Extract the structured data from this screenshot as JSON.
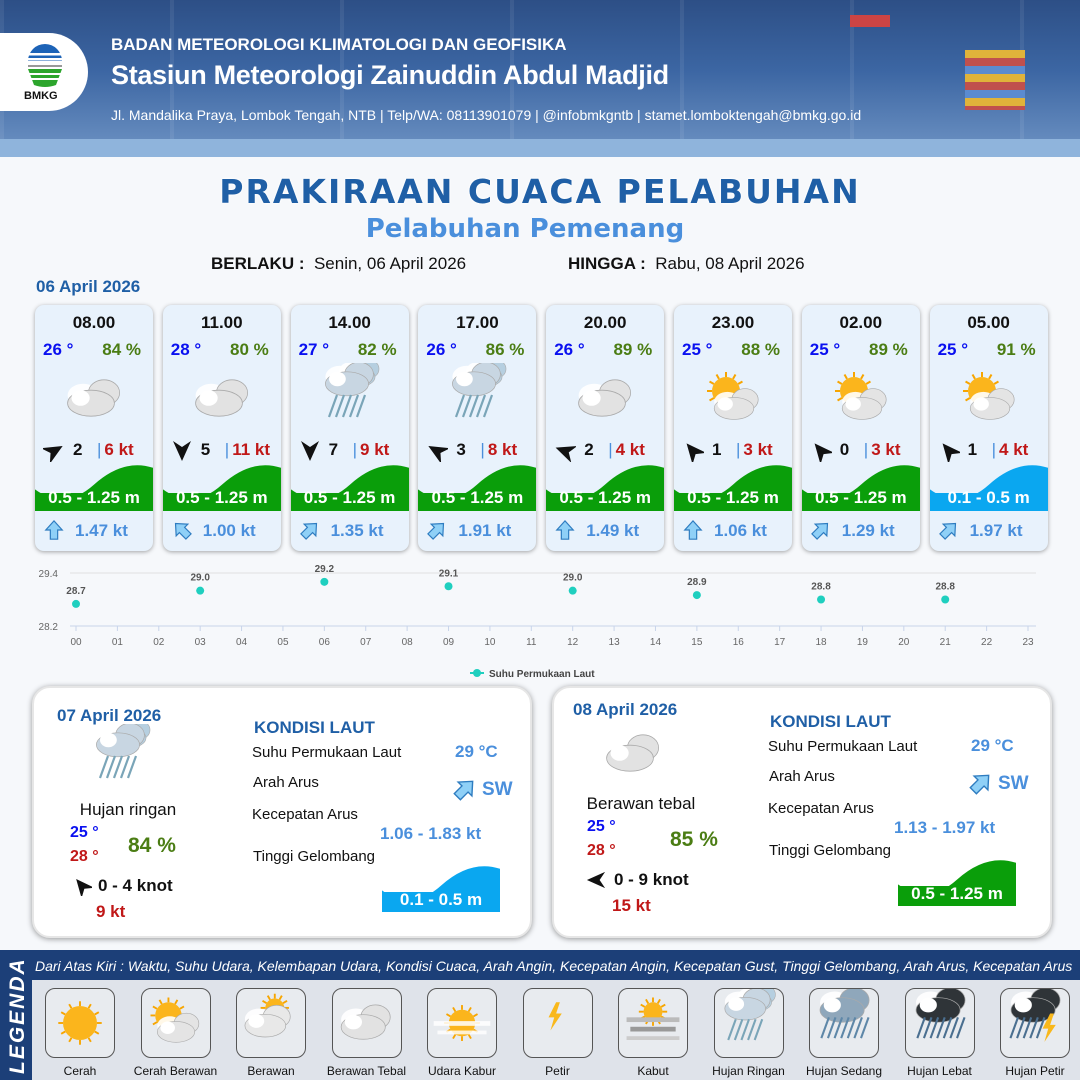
{
  "header": {
    "logo_text": "BMKG",
    "agency": "BADAN METEOROLOGI KLIMATOLOGI DAN GEOFISIKA",
    "station": "Stasiun Meteorologi Zainuddin Abdul Madjid",
    "contact": "Jl. Mandalika Praya, Lombok Tengah, NTB | Telp/WA: 08113901079 | @infobmkgntb | stamet.lomboktengah@bmkg.go.id"
  },
  "title": "PRAKIRAAN CUACA PELABUHAN",
  "port": "Pelabuhan Pemenang",
  "validity": {
    "from_label": "BERLAKU :",
    "from": "Senin, 06 April 2026",
    "to_label": "HINGGA :",
    "to": "Rabu, 08 April 2026"
  },
  "day1": {
    "date": "06 April 2026",
    "cards": [
      {
        "time": "08.00",
        "temp": "26 °",
        "rh": "84 %",
        "icon": "berawan-tebal",
        "wind_dir_deg": 60,
        "wind": "2",
        "gust": "6 kt",
        "wave": "0.5 - 1.25 m",
        "wave_color": "#0a9e0a",
        "cur_dir_deg": 180,
        "current": "1.47 kt"
      },
      {
        "time": "11.00",
        "temp": "28 °",
        "rh": "80 %",
        "icon": "berawan-tebal",
        "wind_dir_deg": 180,
        "wind": "5",
        "gust": "11 kt",
        "wave": "0.5 - 1.25 m",
        "wave_color": "#0a9e0a",
        "cur_dir_deg": 135,
        "current": "1.00 kt"
      },
      {
        "time": "14.00",
        "temp": "27 °",
        "rh": "82 %",
        "icon": "hujan-ringan",
        "wind_dir_deg": 180,
        "wind": "7",
        "gust": "9 kt",
        "wave": "0.5 - 1.25 m",
        "wave_color": "#0a9e0a",
        "cur_dir_deg": 225,
        "current": "1.35 kt"
      },
      {
        "time": "17.00",
        "temp": "26 °",
        "rh": "86 %",
        "icon": "hujan-ringan",
        "wind_dir_deg": 300,
        "wind": "3",
        "gust": "8 kt",
        "wave": "0.5 - 1.25 m",
        "wave_color": "#0a9e0a",
        "cur_dir_deg": 225,
        "current": "1.91 kt"
      },
      {
        "time": "20.00",
        "temp": "26 °",
        "rh": "89 %",
        "icon": "berawan-tebal",
        "wind_dir_deg": 290,
        "wind": "2",
        "gust": "4 kt",
        "wave": "0.5 - 1.25 m",
        "wave_color": "#0a9e0a",
        "cur_dir_deg": 180,
        "current": "1.49 kt"
      },
      {
        "time": "23.00",
        "temp": "25 °",
        "rh": "88 %",
        "icon": "cerah-berawan",
        "wind_dir_deg": 320,
        "wind": "1",
        "gust": "3 kt",
        "wave": "0.5 - 1.25 m",
        "wave_color": "#0a9e0a",
        "cur_dir_deg": 180,
        "current": "1.06 kt"
      },
      {
        "time": "02.00",
        "temp": "25 °",
        "rh": "89 %",
        "icon": "cerah-berawan",
        "wind_dir_deg": 320,
        "wind": "0",
        "gust": "3 kt",
        "wave": "0.5 - 1.25 m",
        "wave_color": "#0a9e0a",
        "cur_dir_deg": 225,
        "current": "1.29 kt"
      },
      {
        "time": "05.00",
        "temp": "25 °",
        "rh": "91 %",
        "icon": "cerah-berawan",
        "wind_dir_deg": 320,
        "wind": "1",
        "gust": "4 kt",
        "wave": "0.1 - 0.5 m",
        "wave_color": "#0aa7f0",
        "cur_dir_deg": 225,
        "current": "1.97 kt"
      }
    ]
  },
  "chart_data": {
    "type": "scatter",
    "x": [
      "00",
      "03",
      "06",
      "09",
      "12",
      "15",
      "18",
      "21"
    ],
    "values": [
      28.7,
      29.0,
      29.2,
      29.1,
      29.0,
      28.9,
      28.8,
      28.8
    ],
    "data_labels": [
      "28.7",
      "29.0",
      "29.2",
      "29.1",
      "29.0",
      "28.9",
      "28.8",
      "28.8"
    ],
    "x_ticks": [
      "00",
      "01",
      "02",
      "03",
      "04",
      "05",
      "06",
      "07",
      "08",
      "09",
      "10",
      "11",
      "12",
      "13",
      "14",
      "15",
      "16",
      "17",
      "18",
      "19",
      "20",
      "21",
      "22",
      "23"
    ],
    "y_ticks": [
      "29.4",
      "28.2"
    ],
    "ylim": [
      28.2,
      29.4
    ],
    "series": [
      {
        "name": "Suhu Permukaan Laut",
        "color": "#1fcfbf"
      }
    ],
    "legend": "bottom",
    "grid": true
  },
  "panels": [
    {
      "date": "07 April 2026",
      "icon": "hujan-ringan",
      "condition": "Hujan ringan",
      "tmin": "25 °",
      "tmax": "28 °",
      "rh": "84 %",
      "wind_dir_deg": 320,
      "wind": "0  - 4 knot",
      "gust": "9 kt",
      "heading": "KONDISI LAUT",
      "sst_label": "Suhu Permukaan Laut",
      "sst": "29 °C",
      "dir_label": "Arah Arus",
      "dir": "SW",
      "speed_label": "Kecepatan Arus",
      "speed": "1.06 - 1.83 kt",
      "wave_label": "Tinggi Gelombang",
      "wave": "0.1 - 0.5 m",
      "wave_color": "#0aa7f0"
    },
    {
      "date": "08 April 2026",
      "icon": "berawan-tebal",
      "condition": "Berawan tebal",
      "tmin": "25 °",
      "tmax": "28 °",
      "rh": "85 %",
      "wind_dir_deg": 270,
      "wind": "0  - 9 knot",
      "gust": "15 kt",
      "heading": "KONDISI LAUT",
      "sst_label": "Suhu Permukaan Laut",
      "sst": "29 °C",
      "dir_label": "Arah Arus",
      "dir": "SW",
      "speed_label": "Kecepatan Arus",
      "speed": "1.13 - 1.97 kt",
      "wave_label": "Tinggi Gelombang",
      "wave": "0.5 - 1.25 m",
      "wave_color": "#0a9e0a"
    }
  ],
  "legend": {
    "title": "LEGENDA",
    "note": "Dari Atas Kiri : Waktu, Suhu Udara, Kelembapan Udara, Kondisi Cuaca, Arah Angin, Kecepatan Angin, Kecepatan Gust, Tinggi Gelombang, Arah Arus, Kecepatan Arus",
    "items": [
      {
        "label": "Cerah",
        "icon": "cerah"
      },
      {
        "label": "Cerah Berawan",
        "icon": "cerah-berawan"
      },
      {
        "label": "Berawan",
        "icon": "berawan"
      },
      {
        "label": "Berawan Tebal",
        "icon": "berawan-tebal"
      },
      {
        "label": "Udara Kabur",
        "icon": "udara-kabur"
      },
      {
        "label": "Petir",
        "icon": "petir"
      },
      {
        "label": "Kabut",
        "icon": "kabut"
      },
      {
        "label": "Hujan Ringan",
        "icon": "hujan-ringan"
      },
      {
        "label": "Hujan Sedang",
        "icon": "hujan-sedang"
      },
      {
        "label": "Hujan Lebat",
        "icon": "hujan-lebat"
      },
      {
        "label": "Hujan Petir",
        "icon": "hujan-petir"
      }
    ]
  }
}
